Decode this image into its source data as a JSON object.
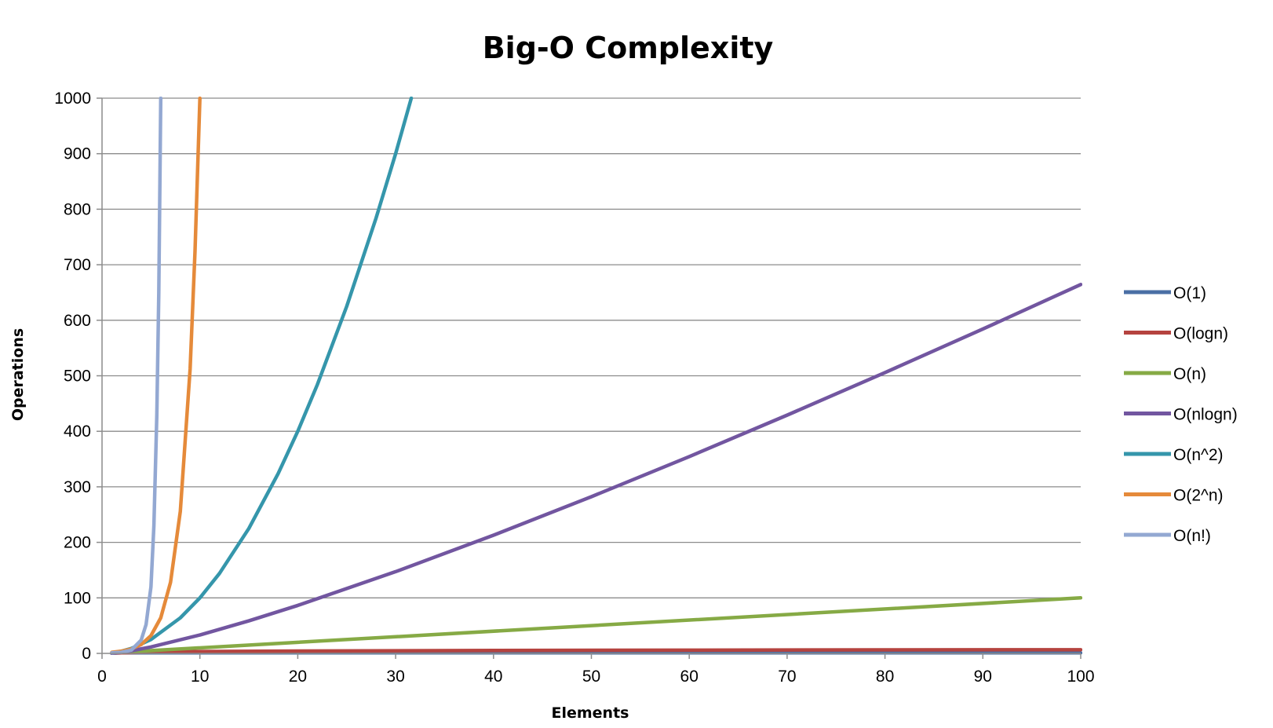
{
  "chart_data": {
    "type": "line",
    "title": "Big-O Complexity",
    "xlabel": "Elements",
    "ylabel": "Operations",
    "xlim": [
      0,
      100
    ],
    "ylim": [
      0,
      1000
    ],
    "x_ticks": [
      0,
      10,
      20,
      30,
      40,
      50,
      60,
      70,
      80,
      90,
      100
    ],
    "y_ticks": [
      0,
      100,
      200,
      300,
      400,
      500,
      600,
      700,
      800,
      900,
      1000
    ],
    "grid": true,
    "legend_position": "right",
    "series": [
      {
        "name": "O(1)",
        "color": "#4a6fa5",
        "points": [
          [
            1,
            1
          ],
          [
            100,
            1
          ]
        ]
      },
      {
        "name": "O(logn)",
        "color": "#b5433f",
        "points": [
          [
            1,
            0
          ],
          [
            2,
            1
          ],
          [
            5,
            2.3
          ],
          [
            10,
            3.3
          ],
          [
            20,
            4.3
          ],
          [
            40,
            5.3
          ],
          [
            60,
            5.9
          ],
          [
            80,
            6.3
          ],
          [
            100,
            6.6
          ]
        ]
      },
      {
        "name": "O(n)",
        "color": "#86aa45",
        "points": [
          [
            1,
            1
          ],
          [
            100,
            100
          ]
        ]
      },
      {
        "name": "O(nlogn)",
        "color": "#7256a0",
        "points": [
          [
            1,
            0
          ],
          [
            2,
            2
          ],
          [
            3,
            4.8
          ],
          [
            5,
            11.6
          ],
          [
            10,
            33.2
          ],
          [
            15,
            58.6
          ],
          [
            20,
            86.4
          ],
          [
            30,
            147.2
          ],
          [
            40,
            212.9
          ],
          [
            50,
            282.2
          ],
          [
            60,
            354.4
          ],
          [
            70,
            429.1
          ],
          [
            80,
            505.8
          ],
          [
            90,
            584.2
          ],
          [
            100,
            664.4
          ]
        ]
      },
      {
        "name": "O(n^2)",
        "color": "#3596ab",
        "points": [
          [
            1,
            1
          ],
          [
            2,
            4
          ],
          [
            3,
            9
          ],
          [
            5,
            25
          ],
          [
            8,
            64
          ],
          [
            10,
            100
          ],
          [
            12,
            144
          ],
          [
            15,
            225
          ],
          [
            18,
            324
          ],
          [
            20,
            400
          ],
          [
            22,
            484
          ],
          [
            25,
            625
          ],
          [
            28,
            784
          ],
          [
            30,
            900
          ],
          [
            31.6,
            1000
          ]
        ]
      },
      {
        "name": "O(2^n)",
        "color": "#e58a3a",
        "points": [
          [
            1,
            2
          ],
          [
            2,
            4
          ],
          [
            3,
            8
          ],
          [
            4,
            16
          ],
          [
            5,
            32
          ],
          [
            6,
            64
          ],
          [
            7,
            128
          ],
          [
            8,
            256
          ],
          [
            9,
            512
          ],
          [
            9.5,
            724
          ],
          [
            10,
            1000
          ]
        ]
      },
      {
        "name": "O(n!)",
        "color": "#93a8d2",
        "points": [
          [
            1,
            1
          ],
          [
            2,
            2
          ],
          [
            3,
            6
          ],
          [
            4,
            24
          ],
          [
            4.5,
            52
          ],
          [
            5,
            120
          ],
          [
            5.3,
            230
          ],
          [
            5.6,
            430
          ],
          [
            5.8,
            650
          ],
          [
            6,
            1000
          ]
        ]
      }
    ]
  }
}
